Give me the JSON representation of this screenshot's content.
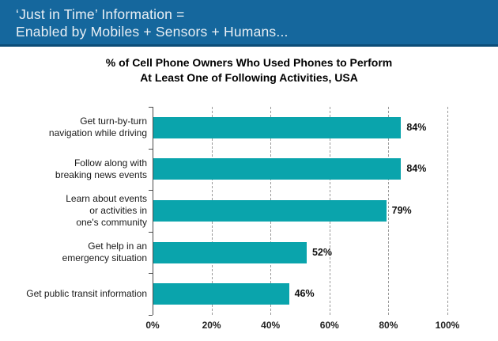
{
  "header": {
    "line1": "‘Just in Time’ Information =",
    "line2": "Enabled by Mobiles + Sensors + Humans...",
    "background": "#15679D",
    "border_bottom_color": "#0C4C77",
    "text_color": "#E9EFF4"
  },
  "chart": {
    "title_line1": "% of Cell Phone Owners Who Used Phones to Perform",
    "title_line2": "At Least One of Following Activities, USA"
  },
  "chart_data": {
    "type": "bar",
    "orientation": "horizontal",
    "title": "% of Cell Phone Owners Who Used Phones to Perform At Least One of Following Activities, USA",
    "categories": [
      "Get turn-by-turn navigation while driving",
      "Follow along with breaking news events",
      "Learn about events or activities in one's community",
      "Get help in an emergency situation",
      "Get public transit information"
    ],
    "category_lines": [
      [
        "Get turn-by-turn",
        "navigation while driving"
      ],
      [
        "Follow along with",
        "breaking news events"
      ],
      [
        "Learn about events",
        "or activities in",
        "one's community"
      ],
      [
        "Get help in an",
        "emergency situation"
      ],
      [
        "Get public transit information"
      ]
    ],
    "values": [
      84,
      84,
      79,
      52,
      46
    ],
    "value_labels": [
      "84%",
      "84%",
      "79%",
      "52%",
      "46%"
    ],
    "x_tick_values": [
      0,
      20,
      40,
      60,
      80,
      100
    ],
    "x_tick_labels": [
      "0%",
      "20%",
      "40%",
      "60%",
      "80%",
      "100%"
    ],
    "xlim": [
      0,
      100
    ],
    "xlabel": "",
    "ylabel": "",
    "grid": "vertical-dashed",
    "legend": "none",
    "bar_color": "#0AA4AC",
    "gridline_color": "#9A9A9A",
    "axis_color": "#4A4A4A"
  }
}
